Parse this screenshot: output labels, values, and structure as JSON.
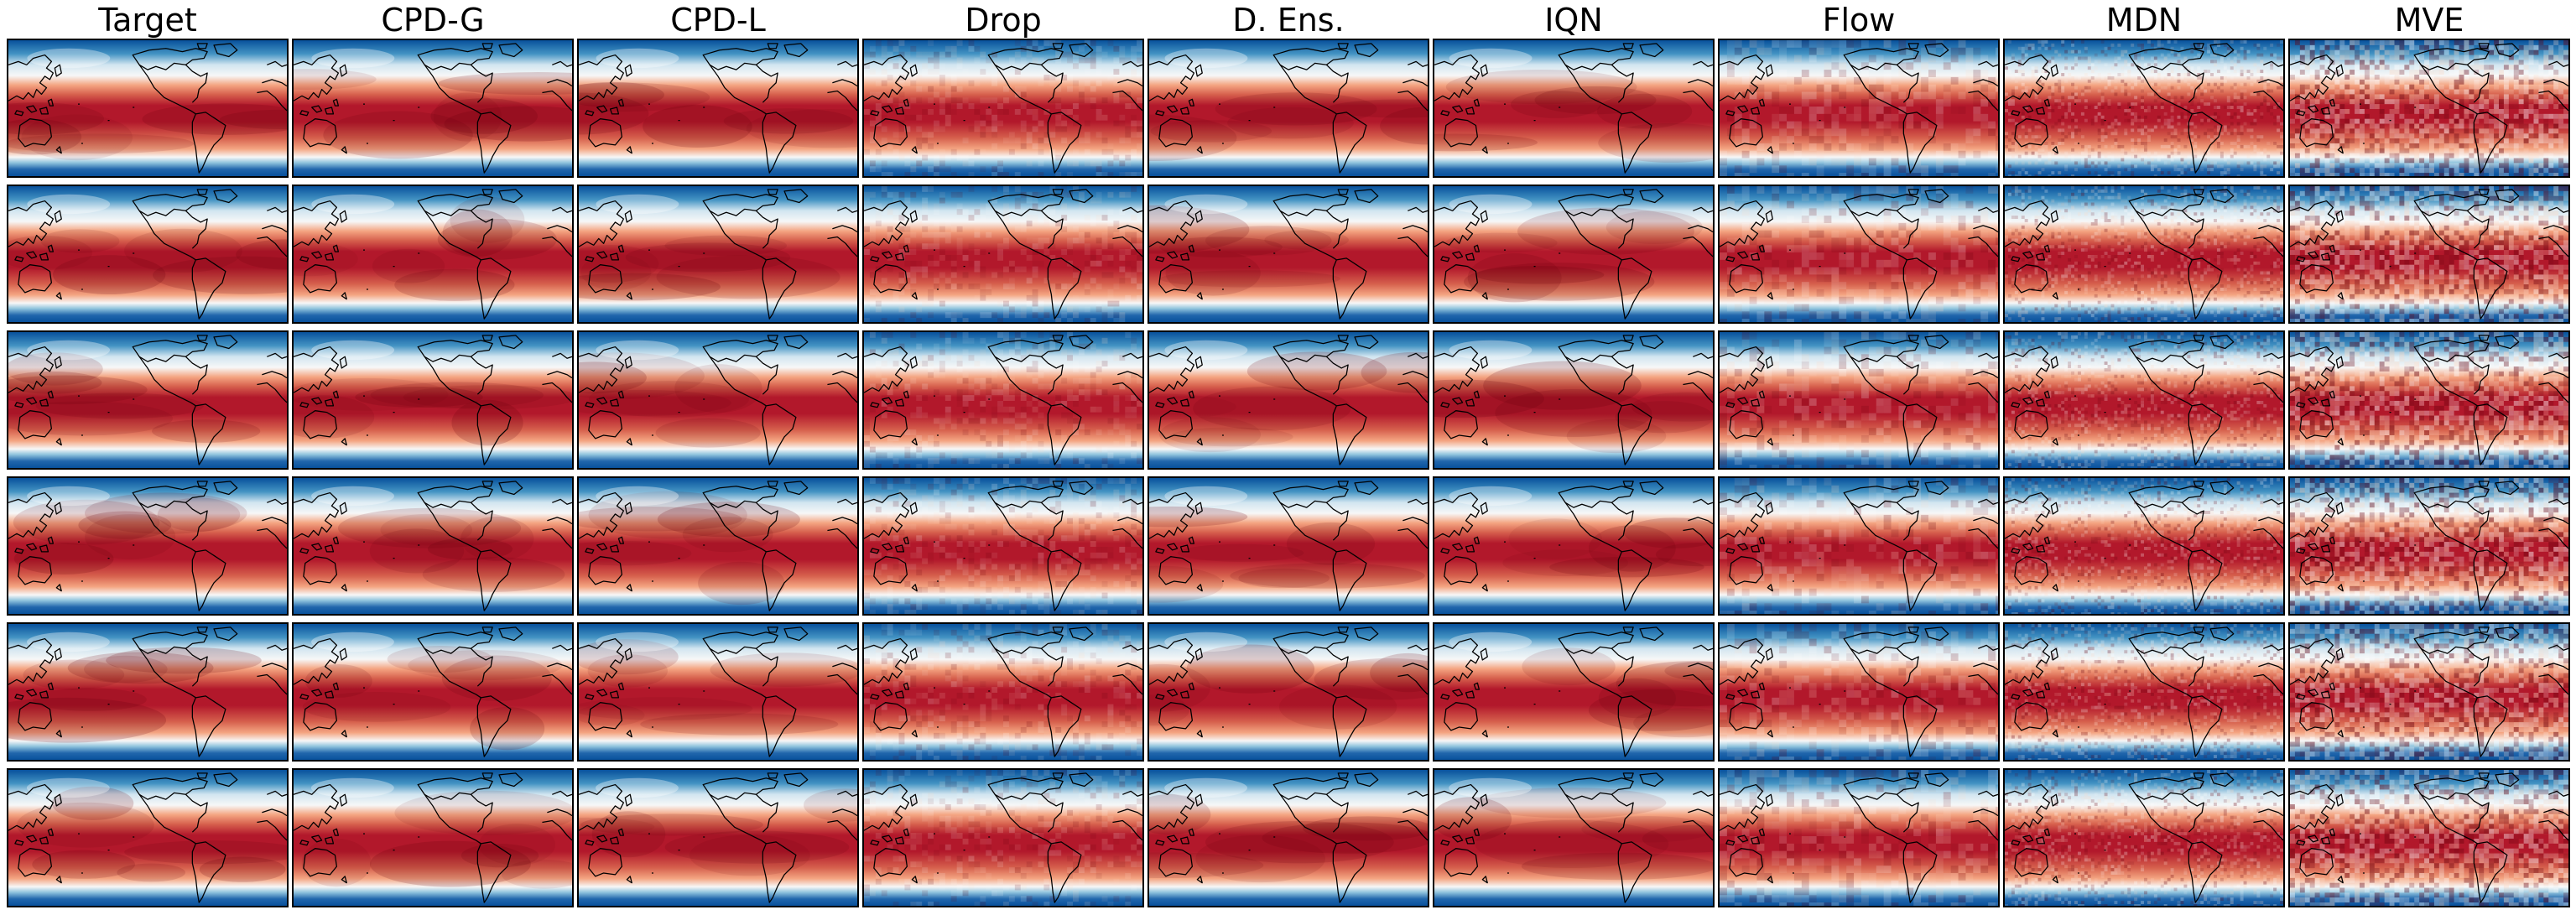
{
  "figure": {
    "column_titles": [
      "Target",
      "CPD-G",
      "CPD-L",
      "Drop",
      "D. Ens.",
      "IQN",
      "Flow",
      "MDN",
      "MVE"
    ],
    "row_count": 6,
    "map_projection": "equirectangular, Pacific-centered (180° central meridian)",
    "colormap": "RdBu_r",
    "colormap_colors": {
      "cold": "#08519c",
      "mid": "#f7f7f7",
      "warm": "#b2182b",
      "hot": "#67000d"
    },
    "panel_style": {
      "Target": "smooth",
      "CPD-G": "smooth",
      "CPD-L": "smooth",
      "Drop": "blocky",
      "D. Ens.": "smooth",
      "IQN": "smooth",
      "Flow": "mottled",
      "MDN": "speckled",
      "MVE": "very-noisy"
    }
  }
}
